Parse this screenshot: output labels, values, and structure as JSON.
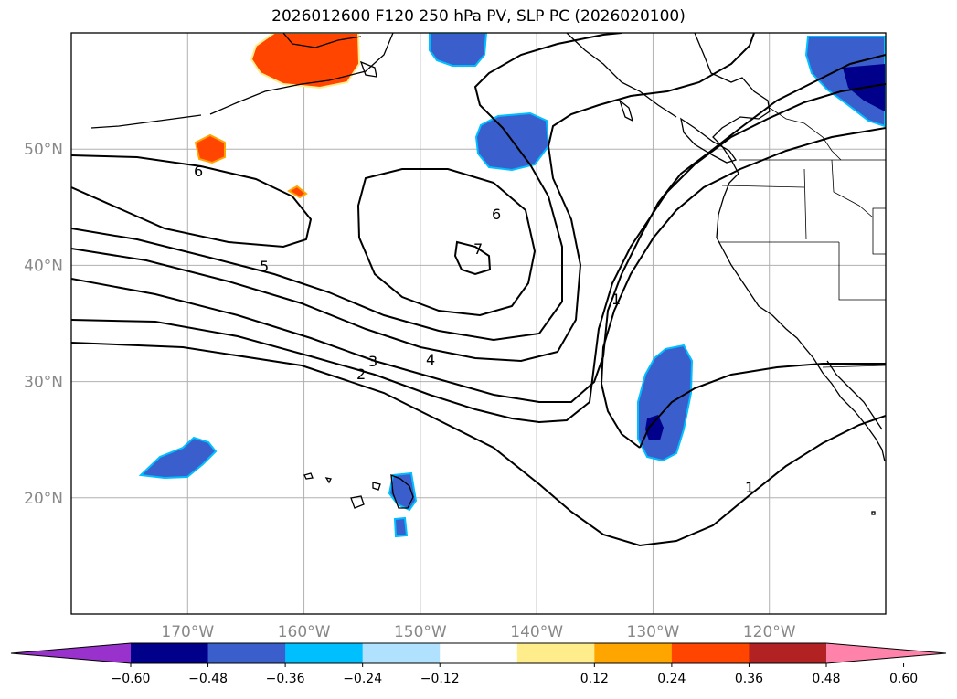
{
  "title": "2026012600 F120 250 hPa PV, SLP PC (2026020100)",
  "map": {
    "lon_range": [
      -180,
      -110
    ],
    "lat_range": [
      10,
      60
    ],
    "lon_ticks": [
      {
        "value": -170,
        "label": "170°W"
      },
      {
        "value": -160,
        "label": "160°W"
      },
      {
        "value": -150,
        "label": "150°W"
      },
      {
        "value": -140,
        "label": "140°W"
      },
      {
        "value": -130,
        "label": "130°W"
      },
      {
        "value": -120,
        "label": "120°W"
      }
    ],
    "lat_ticks": [
      {
        "value": 20,
        "label": "20°N"
      },
      {
        "value": 30,
        "label": "30°N"
      },
      {
        "value": 40,
        "label": "40°N"
      },
      {
        "value": 50,
        "label": "50°N"
      }
    ],
    "grid": true,
    "contour_labels": [
      "6",
      "7",
      "6",
      "5",
      "4",
      "3",
      "2",
      "1",
      "1"
    ]
  },
  "colorbar": {
    "tick_labels": [
      "−0.60",
      "−0.48",
      "−0.36",
      "−0.24",
      "−0.12",
      "0.12",
      "0.24",
      "0.36",
      "0.48",
      "0.60"
    ],
    "tick_values": [
      -0.6,
      -0.48,
      -0.36,
      -0.24,
      -0.12,
      0.12,
      0.24,
      0.36,
      0.48,
      0.6
    ],
    "colors": [
      "#9932cc",
      "#00008b",
      "#3a5fcd",
      "#00bfff",
      "#b0e2ff",
      "#ffffff",
      "#ffec8b",
      "#ffa500",
      "#ff4500",
      "#b22222",
      "#ff82ab"
    ]
  }
}
